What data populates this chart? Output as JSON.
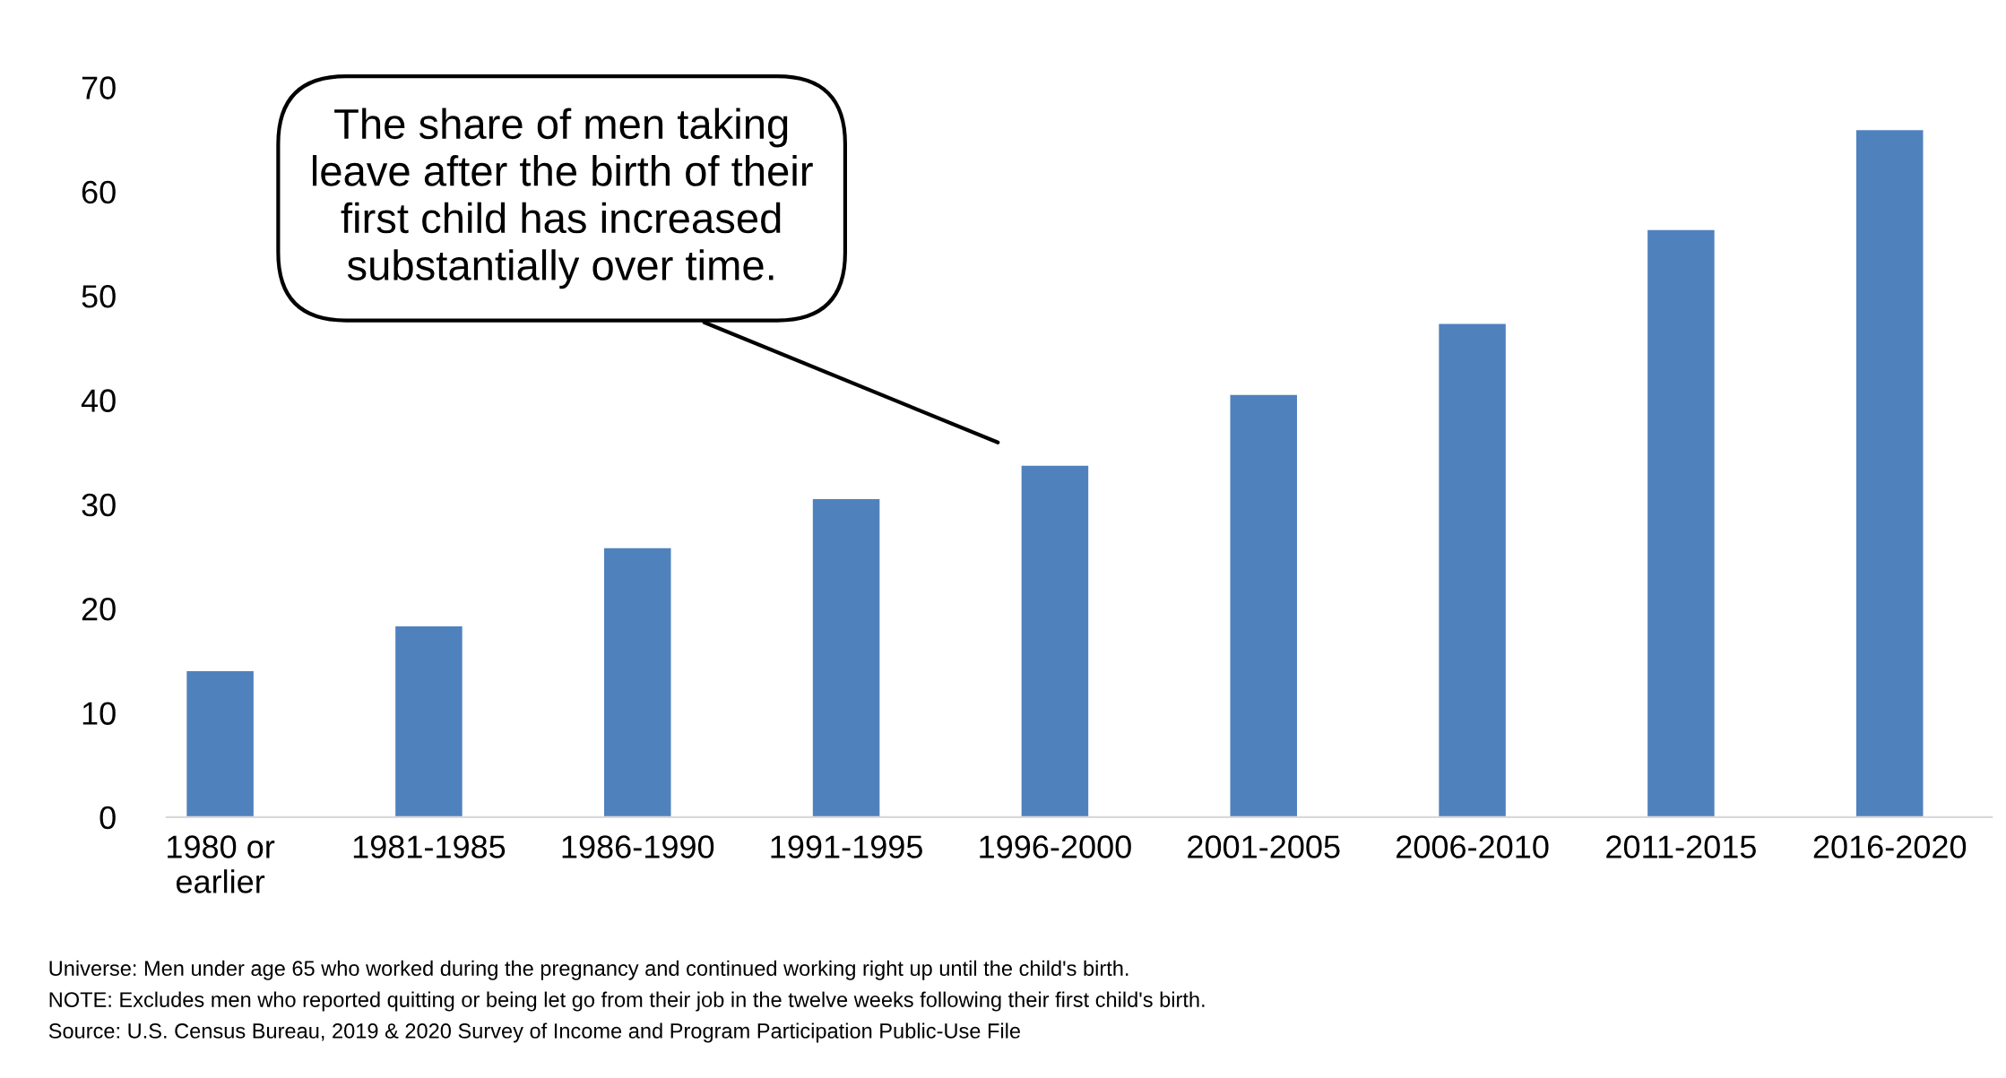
{
  "chart_data": {
    "type": "bar",
    "categories": [
      "1980 or\nearlier",
      "1981-1985",
      "1986-1990",
      "1991-1995",
      "1996-2000",
      "2001-2005",
      "2006-2010",
      "2011-2015",
      "2016-2020"
    ],
    "values": [
      14.0,
      18.3,
      25.8,
      30.5,
      33.7,
      40.5,
      47.3,
      56.3,
      65.9
    ],
    "color": "#4f81bd",
    "ylim": [
      0,
      70
    ],
    "yticks": [
      0,
      10,
      20,
      30,
      40,
      50,
      60,
      70
    ],
    "grid": false,
    "legend": false,
    "annotations": [
      "The share of men taking\nleave after the birth of their\nfirst child has increased\nsubstantially over time.",
      "Universe: Men under age 65 who worked during the pregnancy and continued working right up until the child's birth.",
      "NOTE: Excludes men who reported quitting or being let go from their job in the twelve weeks following their first child's birth.",
      "Source: U.S. Census Bureau, 2019 & 2020 Survey of Income and Program Participation Public-Use File"
    ]
  }
}
